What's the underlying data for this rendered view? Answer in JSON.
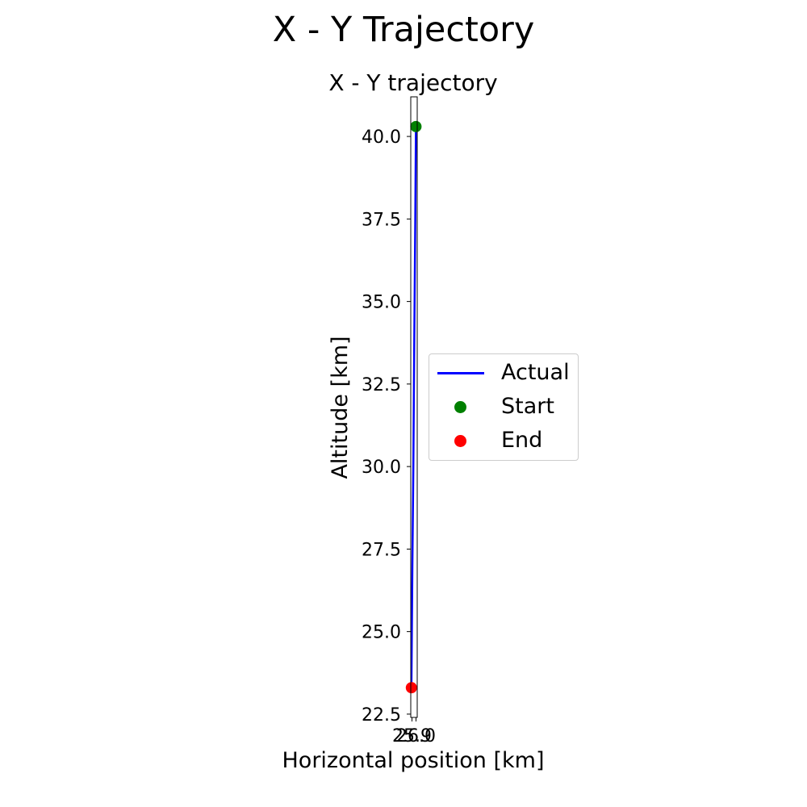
{
  "figure": {
    "suptitle": "X - Y Trajectory"
  },
  "colors": {
    "actual": "#0000ff",
    "start": "#008000",
    "end": "#ff0000"
  },
  "chart_data": {
    "type": "line",
    "title": "X - Y trajectory",
    "xlabel": "Horizontal position [km]",
    "ylabel": "Altitude [km]",
    "xlim": [
      25.85,
      25.95
    ],
    "ylim": [
      22.4,
      41.2
    ],
    "x_tick_labels": [
      "25.9",
      "26.0"
    ],
    "y_ticks": [
      22.5,
      25.0,
      27.5,
      30.0,
      32.5,
      35.0,
      37.5,
      40.0
    ],
    "y_tick_labels": [
      "22.5",
      "25.0",
      "27.5",
      "30.0",
      "32.5",
      "35.0",
      "37.5",
      "40.0"
    ],
    "grid": false,
    "legend_position": "center-right outside",
    "series": [
      {
        "name": "Actual",
        "x": [
          25.93,
          25.92,
          25.905,
          25.89,
          25.875,
          25.865,
          25.86
        ],
        "y": [
          40.3,
          37.5,
          34.0,
          30.0,
          27.0,
          24.5,
          23.3
        ]
      }
    ],
    "markers": [
      {
        "name": "Start",
        "x": 25.93,
        "y": 40.3
      },
      {
        "name": "End",
        "x": 25.86,
        "y": 23.3
      }
    ]
  }
}
